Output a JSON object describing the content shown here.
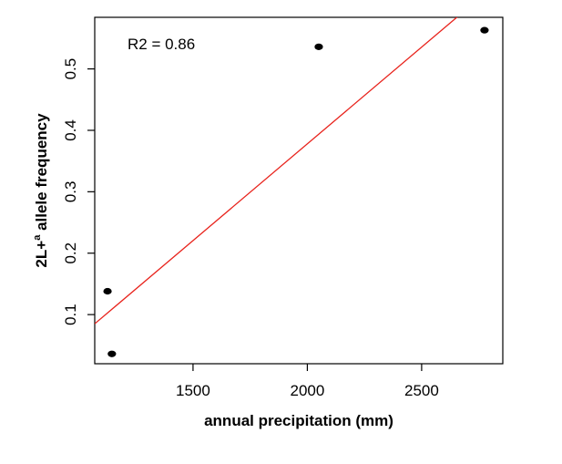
{
  "chart_data": {
    "type": "scatter",
    "xlabel": "annual precipitation (mm)",
    "ylabel_parts": {
      "base": "2L+",
      "superscript": "a",
      "rest": " allele frequency"
    },
    "annotation": "R2 = 0.86",
    "xlim": [
      1070,
      2855
    ],
    "ylim": [
      0.02,
      0.584
    ],
    "x_ticks": [
      1500,
      2000,
      2500
    ],
    "y_ticks": [
      0.1,
      0.2,
      0.3,
      0.4,
      0.5
    ],
    "y_tick_labels": [
      "0.1",
      "0.2",
      "0.3",
      "0.4",
      "0.5"
    ],
    "points": [
      {
        "x": 1126,
        "y": 0.138
      },
      {
        "x": 1145,
        "y": 0.036
      },
      {
        "x": 2050,
        "y": 0.536
      },
      {
        "x": 2775,
        "y": 0.563
      }
    ],
    "regression_line": {
      "intercept": -0.252,
      "slope": 0.000315,
      "color": "#e8221b"
    },
    "point_color": "#000000",
    "grid": false
  }
}
